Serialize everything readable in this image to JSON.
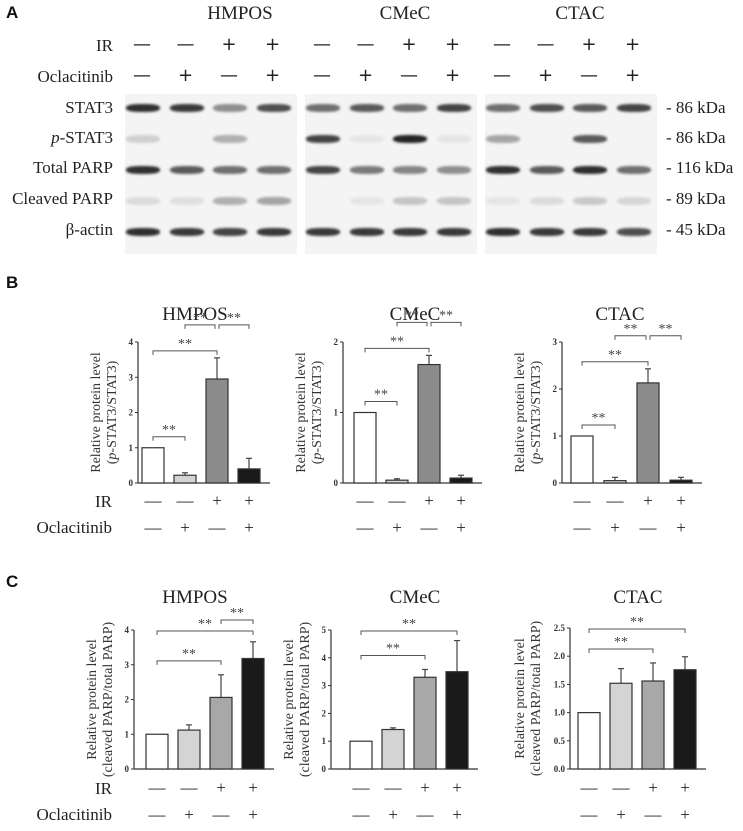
{
  "panel_a": {
    "letter": "A",
    "cell_lines": [
      "HMPOS",
      "CMeC",
      "CTAC"
    ],
    "treatment_rows": [
      {
        "label": "IR",
        "signs": [
          "—",
          "—",
          "+",
          "+"
        ]
      },
      {
        "label": "Oclacitinib",
        "signs": [
          "—",
          "+",
          "—",
          "+"
        ]
      }
    ],
    "blot_rows": [
      {
        "label": "STAT3",
        "italic_prefix": "",
        "kda": "- 86 kDa"
      },
      {
        "label": "-STAT3",
        "italic_prefix": "p",
        "kda": "- 86 kDa"
      },
      {
        "label": "Total PARP",
        "italic_prefix": "",
        "kda": "- 116 kDa"
      },
      {
        "label": "Cleaved PARP",
        "italic_prefix": "",
        "kda": "- 89 kDa"
      },
      {
        "label": "β-actin",
        "italic_prefix": "",
        "kda": "- 45 kDa"
      }
    ]
  },
  "panel_b": {
    "letter": "B"
  },
  "panel_c": {
    "letter": "C"
  },
  "row_labels": {
    "ir": "IR",
    "oclacitinib": "Oclacitinib"
  },
  "colors": {
    "white": "#ffffff",
    "light_gray": "#d4d4d4",
    "mid_gray": "#8c8c8c",
    "mid_gray_c": "#a8a8a8",
    "black": "#1a1a1a"
  },
  "chart_data": [
    {
      "type": "bar",
      "panel": "B",
      "title": "HMPOS",
      "ylabel": "Relative protein level (p-STAT3/STAT3)",
      "categories": [
        "IR-/Ocl-",
        "IR-/Ocl+",
        "IR+/Ocl-",
        "IR+/Ocl+"
      ],
      "values": [
        1.0,
        0.22,
        2.95,
        0.4
      ],
      "errors": [
        0,
        0.07,
        0.6,
        0.3
      ],
      "ylim": [
        0,
        4
      ],
      "yticks": [
        "0",
        "1",
        "2",
        "3",
        "4"
      ],
      "significance": [
        {
          "from": 0,
          "to": 1,
          "label": "**"
        },
        {
          "from": 0,
          "to": 2,
          "label": "**"
        },
        {
          "from": 1,
          "to": 2,
          "label": "**"
        },
        {
          "from": 2,
          "to": 3,
          "label": "**"
        }
      ]
    },
    {
      "type": "bar",
      "panel": "B",
      "title": "CMeC",
      "ylabel": "Relative protein level (p-STAT3/STAT3)",
      "categories": [
        "IR-/Ocl-",
        "IR-/Ocl+",
        "IR+/Ocl-",
        "IR+/Ocl+"
      ],
      "values": [
        1.0,
        0.04,
        1.68,
        0.07
      ],
      "errors": [
        0,
        0.02,
        0.13,
        0.04
      ],
      "ylim": [
        0,
        2
      ],
      "yticks": [
        "0",
        "1",
        "2"
      ],
      "significance": [
        {
          "from": 0,
          "to": 1,
          "label": "**"
        },
        {
          "from": 0,
          "to": 2,
          "label": "**"
        },
        {
          "from": 1,
          "to": 2,
          "label": "**"
        },
        {
          "from": 2,
          "to": 3,
          "label": "**"
        }
      ]
    },
    {
      "type": "bar",
      "panel": "B",
      "title": "CTAC",
      "ylabel": "Relative protein level (p-STAT3/STAT3)",
      "categories": [
        "IR-/Ocl-",
        "IR-/Ocl+",
        "IR+/Ocl-",
        "IR+/Ocl+"
      ],
      "values": [
        1.0,
        0.05,
        2.13,
        0.06
      ],
      "errors": [
        0,
        0.07,
        0.3,
        0.06
      ],
      "ylim": [
        0,
        3
      ],
      "yticks": [
        "0",
        "1",
        "2",
        "3"
      ],
      "significance": [
        {
          "from": 0,
          "to": 1,
          "label": "**"
        },
        {
          "from": 0,
          "to": 2,
          "label": "**"
        },
        {
          "from": 1,
          "to": 2,
          "label": "**"
        },
        {
          "from": 2,
          "to": 3,
          "label": "**"
        }
      ]
    },
    {
      "type": "bar",
      "panel": "C",
      "title": "HMPOS",
      "ylabel": "Relative protein level (cleaved PARP/total PARP)",
      "categories": [
        "IR-/Ocl-",
        "IR-/Ocl+",
        "IR+/Ocl-",
        "IR+/Ocl+"
      ],
      "values": [
        1.0,
        1.12,
        2.06,
        3.18
      ],
      "errors": [
        0,
        0.15,
        0.65,
        0.48
      ],
      "ylim": [
        0,
        4
      ],
      "yticks": [
        "0",
        "1",
        "2",
        "3",
        "4"
      ],
      "significance": [
        {
          "from": 0,
          "to": 2,
          "label": "**"
        },
        {
          "from": 0,
          "to": 3,
          "label": "**"
        },
        {
          "from": 2,
          "to": 3,
          "label": "**"
        }
      ]
    },
    {
      "type": "bar",
      "panel": "C",
      "title": "CMeC",
      "ylabel": "Relative protein level (cleaved PARP/total PARP)",
      "categories": [
        "IR-/Ocl-",
        "IR-/Ocl+",
        "IR+/Ocl-",
        "IR+/Ocl+"
      ],
      "values": [
        1.0,
        1.42,
        3.3,
        3.5
      ],
      "errors": [
        0,
        0.06,
        0.28,
        1.12
      ],
      "ylim": [
        0,
        5
      ],
      "yticks": [
        "0",
        "1",
        "2",
        "3",
        "4",
        "5"
      ],
      "significance": [
        {
          "from": 0,
          "to": 2,
          "label": "**"
        },
        {
          "from": 0,
          "to": 3,
          "label": "**"
        }
      ]
    },
    {
      "type": "bar",
      "panel": "C",
      "title": "CTAC",
      "ylabel": "Relative protein level (cleaved PARP/total PARP)",
      "categories": [
        "IR-/Ocl-",
        "IR-/Ocl+",
        "IR+/Ocl-",
        "IR+/Ocl+"
      ],
      "values": [
        1.0,
        1.52,
        1.56,
        1.76
      ],
      "errors": [
        0,
        0.26,
        0.32,
        0.23
      ],
      "ylim": [
        0,
        2.5
      ],
      "yticks": [
        "0.0",
        "0.5",
        "1.0",
        "1.5",
        "2.0",
        "2.5"
      ],
      "significance": [
        {
          "from": 0,
          "to": 2,
          "label": "**"
        },
        {
          "from": 0,
          "to": 3,
          "label": "**"
        }
      ]
    }
  ]
}
